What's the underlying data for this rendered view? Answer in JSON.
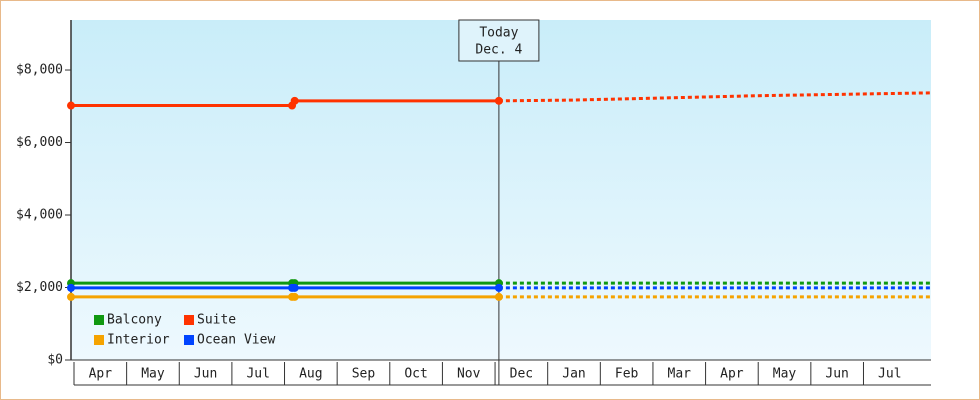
{
  "chart_data": {
    "type": "line",
    "x": [
      0,
      4.2,
      4.25,
      8.13,
      9.5,
      11,
      13,
      16.34
    ],
    "xlim": [
      0,
      16.34
    ],
    "xticks": [
      {
        "value": 0.5,
        "label": "Apr"
      },
      {
        "value": 1.5,
        "label": "May"
      },
      {
        "value": 2.5,
        "label": "Jun"
      },
      {
        "value": 3.5,
        "label": "Jul"
      },
      {
        "value": 4.5,
        "label": "Aug"
      },
      {
        "value": 5.5,
        "label": "Sep"
      },
      {
        "value": 6.5,
        "label": "Oct"
      },
      {
        "value": 7.5,
        "label": "Nov"
      },
      {
        "value": 8.5,
        "label": "Dec"
      },
      {
        "value": 9.5,
        "label": "Jan"
      },
      {
        "value": 10.5,
        "label": "Feb"
      },
      {
        "value": 11.5,
        "label": "Mar"
      },
      {
        "value": 12.5,
        "label": "Apr"
      },
      {
        "value": 13.5,
        "label": "May"
      },
      {
        "value": 14.5,
        "label": "Jun"
      },
      {
        "value": 15.5,
        "label": "Jul"
      }
    ],
    "ylim": [
      0,
      9380
    ],
    "yticks": [
      {
        "value": 0,
        "label": "$0"
      },
      {
        "value": 2000,
        "label": "$2,000"
      },
      {
        "value": 4000,
        "label": "$4,000"
      },
      {
        "value": 6000,
        "label": "$6,000"
      },
      {
        "value": 8000,
        "label": "$8,000"
      }
    ],
    "today": {
      "x": 8.13,
      "label": "Today",
      "date": "Dec. 4"
    },
    "legend": "lower left",
    "series": [
      {
        "name": "Balcony",
        "color": "#119911",
        "values": [
          2120,
          2120,
          2120,
          2120,
          2120,
          2120,
          2120,
          2120
        ]
      },
      {
        "name": "Suite",
        "color": "#ff3300",
        "values": [
          7020,
          7020,
          7150,
          7150,
          7170,
          7220,
          7290,
          7370
        ]
      },
      {
        "name": "Interior",
        "color": "#f5a300",
        "values": [
          1740,
          1740,
          1740,
          1740,
          1740,
          1740,
          1740,
          1740
        ]
      },
      {
        "name": "Ocean View",
        "color": "#0044ff",
        "values": [
          1990,
          1990,
          1990,
          1990,
          1990,
          1990,
          1990,
          1990
        ]
      }
    ]
  }
}
